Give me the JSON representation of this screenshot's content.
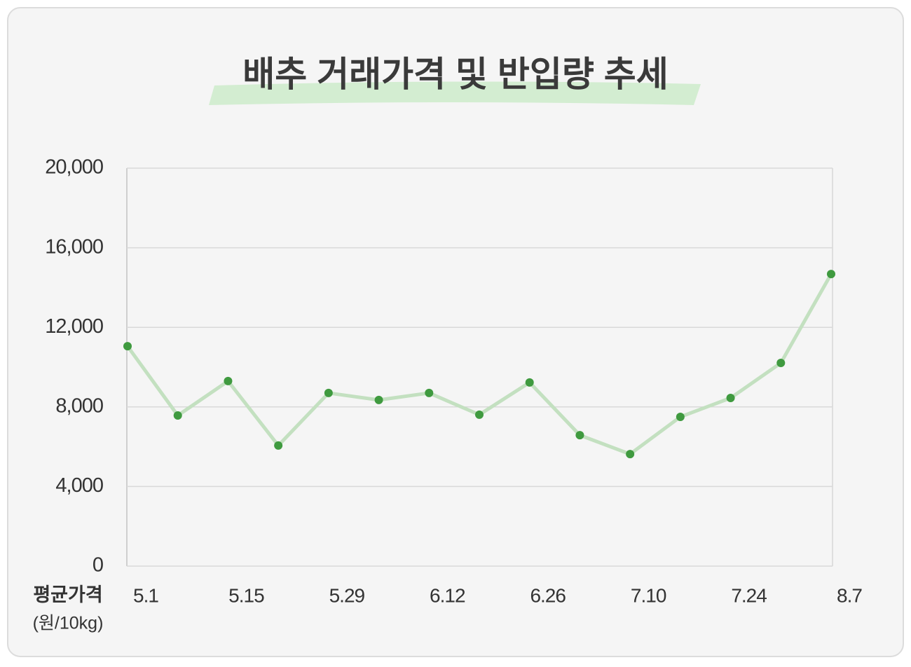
{
  "chart_data": {
    "type": "line",
    "title": "배추 거래가격 및 반입량 추세",
    "ylabel": "평균가격",
    "ylabel_unit": "(원/10kg)",
    "categories": [
      "5.1",
      null,
      "5.15",
      null,
      "5.29",
      null,
      "6.12",
      null,
      "6.26",
      null,
      "7.10",
      null,
      "7.24",
      null,
      "8.7"
    ],
    "series": [
      {
        "line_color": "#c3e0c0",
        "color": "#3f9a3f",
        "values": [
          11050,
          7570,
          9300,
          6060,
          8700,
          8350,
          8700,
          7610,
          9230,
          6580,
          5630,
          7500,
          8450,
          10210,
          14680
        ]
      }
    ],
    "ylim": [
      0,
      20000
    ],
    "yticks": [
      0,
      {
        "value": 4000,
        "label": "4,000"
      },
      {
        "value": 8000,
        "label": "8,000"
      },
      {
        "value": 12000,
        "label": "12,000"
      },
      {
        "value": 16000,
        "label": "16,000"
      },
      {
        "value": 20000,
        "label": "20,000"
      }
    ],
    "grid": true
  }
}
